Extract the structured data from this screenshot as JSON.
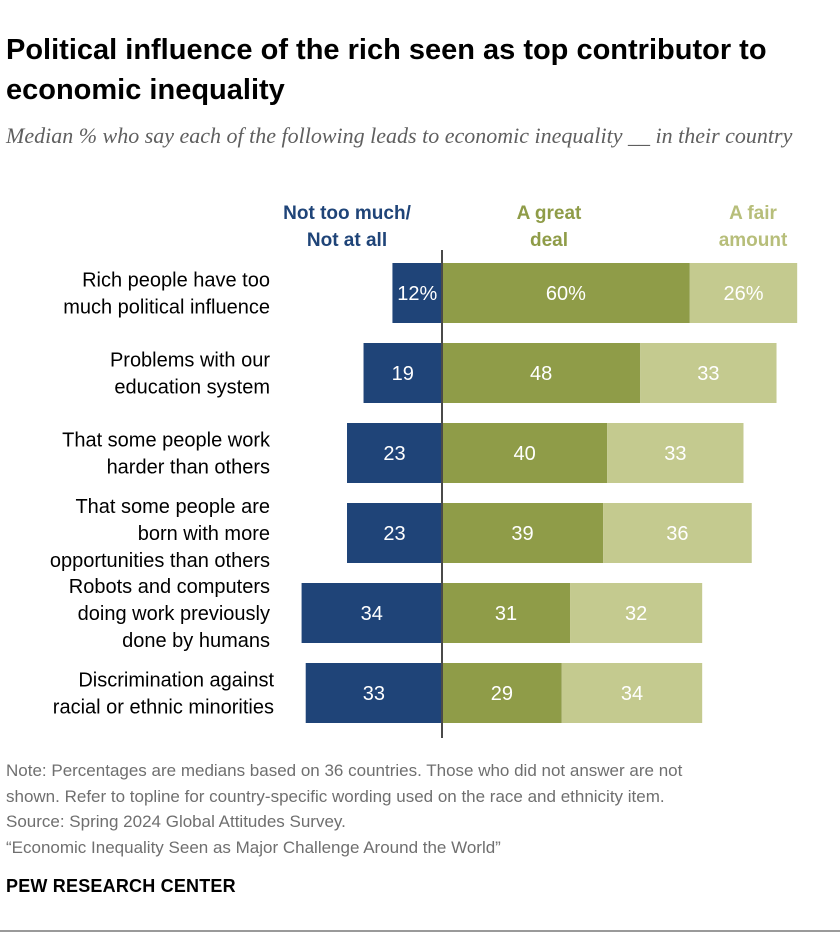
{
  "header": {
    "title": "Political influence of the rich seen as top contributor to economic inequality",
    "subtitle": "Median % who say each of the following leads to economic inequality __ in their country"
  },
  "legend": {
    "not_too_much": [
      "Not too much/",
      "Not at all"
    ],
    "great_deal": [
      "A great",
      "deal"
    ],
    "fair_amount": [
      "A fair",
      "amount"
    ]
  },
  "colors": {
    "not_too_much": "#1f4478",
    "great_deal": "#8f9c48",
    "fair_amount": "#c4ca8f",
    "legend_not_too_much": "#1f4478",
    "legend_great_deal": "#8f9c48",
    "legend_fair_amount": "#b7be7a",
    "axis": "#4a4a4a"
  },
  "chart_data": {
    "type": "bar",
    "orientation": "horizontal-diverging-stacked",
    "categories": [
      [
        "Rich people have too",
        "much political influence"
      ],
      [
        "Problems with our",
        "education system"
      ],
      [
        "That some people work",
        "harder than others"
      ],
      [
        "That some people are",
        "born with more",
        "opportunities than others"
      ],
      [
        "Robots and computers",
        "doing work previously",
        "done by humans"
      ],
      [
        "Discrimination against",
        "racial or ethnic minorities"
      ]
    ],
    "series": [
      {
        "name": "Not too much/Not at all",
        "values": [
          12,
          19,
          23,
          23,
          34,
          33
        ],
        "labels": [
          "12%",
          "19",
          "23",
          "23",
          "34",
          "33"
        ]
      },
      {
        "name": "A great deal",
        "values": [
          60,
          48,
          40,
          39,
          31,
          29
        ],
        "labels": [
          "60%",
          "48",
          "40",
          "39",
          "31",
          "29"
        ]
      },
      {
        "name": "A fair amount",
        "values": [
          26,
          33,
          33,
          36,
          32,
          34
        ],
        "labels": [
          "26%",
          "33",
          "33",
          "36",
          "32",
          "34"
        ]
      }
    ],
    "unit": "%"
  },
  "footer": {
    "notes": [
      "Note: Percentages are medians based on 36 countries. Those who did not answer are not",
      "shown. Refer to topline for country-specific wording used on the race and ethnicity item.",
      "Source: Spring 2024 Global Attitudes Survey.",
      "“Economic Inequality Seen as Major Challenge Around the World”"
    ],
    "brand": "PEW RESEARCH CENTER"
  }
}
